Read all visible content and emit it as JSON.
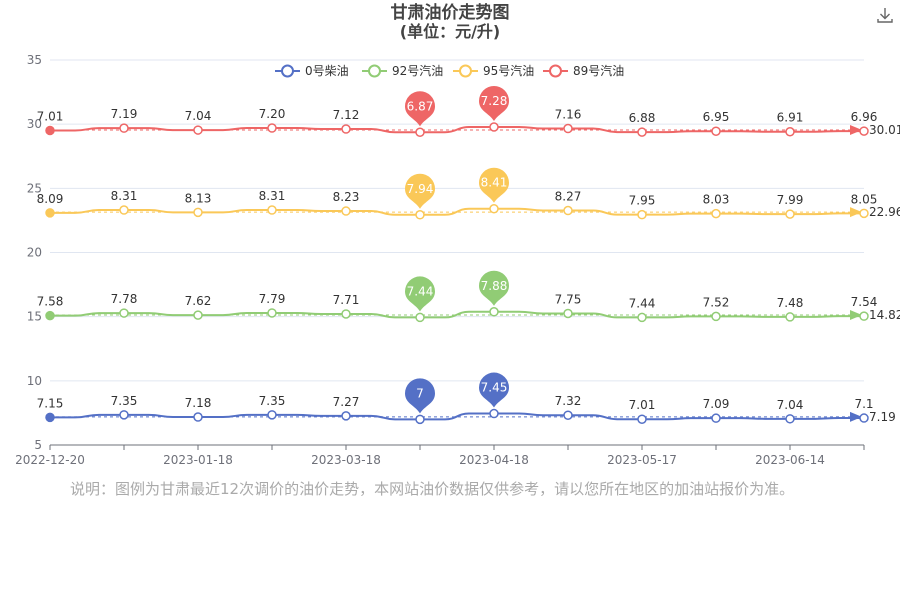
{
  "header": {
    "title": "甘肃油价走势图",
    "subtitle": "(单位：元/升)",
    "download_icon": "download-icon"
  },
  "footnote": "说明：图例为甘肃最近12次调价的油价走势，本网站油价数据仅供参考，请以您所在地区的加油站报价为准。",
  "chart_data": {
    "type": "line",
    "title": "甘肃油价走势图",
    "subtitle": "(单位：元/升)",
    "xlabel": "",
    "ylabel": "",
    "ylim": [
      5,
      35
    ],
    "yticks": [
      5,
      10,
      15,
      20,
      25,
      30,
      35
    ],
    "x_tick_labels": [
      "2022-12-20",
      "2023-01-18",
      "2023-03-18",
      "2023-04-18",
      "2023-05-17",
      "2023-06-14"
    ],
    "x_tick_indices": [
      0,
      2,
      4,
      6,
      8,
      10
    ],
    "legend_position": "top-center",
    "grid": true,
    "series": [
      {
        "name": "0号柴油",
        "color": "#5470c6",
        "offset": 0,
        "values": [
          7.15,
          7.35,
          7.18,
          7.35,
          7.27,
          7.0,
          7.45,
          7.32,
          7.01,
          7.09,
          7.04,
          7.1
        ],
        "value_labels": [
          "7.15",
          "7.35",
          "7.18",
          "7.35",
          "7.27",
          "",
          "",
          "7.32",
          "7.01",
          "7.09",
          "7.04",
          "7.1"
        ],
        "end_value": "7.19",
        "min_pin": {
          "index": 5,
          "label": "7"
        },
        "max_pin": {
          "index": 6,
          "label": "7.45"
        }
      },
      {
        "name": "92号汽油",
        "color": "#91cc75",
        "offset": 7.5,
        "values": [
          7.58,
          7.78,
          7.62,
          7.79,
          7.71,
          7.44,
          7.88,
          7.75,
          7.44,
          7.52,
          7.48,
          7.54
        ],
        "value_labels": [
          "7.58",
          "7.78",
          "7.62",
          "7.79",
          "7.71",
          "",
          "",
          "7.75",
          "7.44",
          "7.52",
          "7.48",
          "7.54"
        ],
        "end_value": "14.82",
        "min_pin": {
          "index": 5,
          "label": "7.44"
        },
        "max_pin": {
          "index": 6,
          "label": "7.88"
        }
      },
      {
        "name": "95号汽油",
        "color": "#fac858",
        "offset": 15,
        "values": [
          8.09,
          8.31,
          8.13,
          8.31,
          8.23,
          7.94,
          8.41,
          8.27,
          7.95,
          8.03,
          7.99,
          8.05
        ],
        "value_labels": [
          "8.09",
          "8.31",
          "8.13",
          "8.31",
          "8.23",
          "",
          "",
          "8.27",
          "7.95",
          "8.03",
          "7.99",
          "8.05"
        ],
        "end_value": "22.96",
        "min_pin": {
          "index": 5,
          "label": "7.94"
        },
        "max_pin": {
          "index": 6,
          "label": "8.41"
        }
      },
      {
        "name": "89号汽油",
        "color": "#ee6666",
        "offset": 22.5,
        "values": [
          7.01,
          7.19,
          7.04,
          7.2,
          7.12,
          6.87,
          7.28,
          7.16,
          6.88,
          6.95,
          6.91,
          6.96
        ],
        "value_labels": [
          "7.01",
          "7.19",
          "7.04",
          "7.20",
          "7.12",
          "",
          "",
          "7.16",
          "6.88",
          "6.95",
          "6.91",
          "6.96"
        ],
        "end_value": "30.01",
        "min_pin": {
          "index": 5,
          "label": "6.87"
        },
        "max_pin": {
          "index": 6,
          "label": "7.28"
        }
      }
    ]
  }
}
